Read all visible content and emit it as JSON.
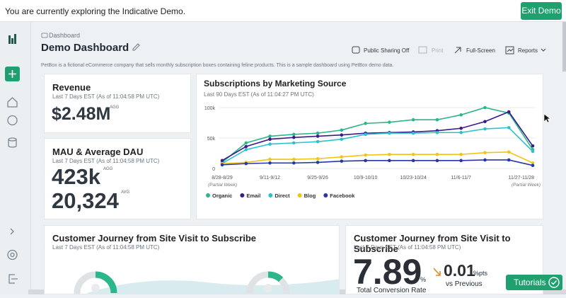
{
  "banner": {
    "message": "You are currently exploring the Indicative Demo.",
    "button": "Exit Demo"
  },
  "header": {
    "breadcrumb": "Dashboard",
    "title": "Demo Dashboard",
    "actions": [
      "Public Sharing Off",
      "Print",
      "Full-Screen",
      "Reports"
    ],
    "description": "PetBox is a fictional eCommerce company that sells monthly subscription boxes containing feline products. This is a sample dashboard using PetBox demo data."
  },
  "cards": [
    {
      "title": "Revenue",
      "subtitle": "Last 7 Days EST (As of 11:04:58 PM UTC)",
      "metrics": [
        {
          "value": "$2.48M",
          "tag": "AGG"
        }
      ]
    },
    {
      "title": "MAU & Average DAU",
      "subtitle": "Last 7 Days EST (As of 11:04:58 PM UTC)",
      "metrics": [
        {
          "value": "423k",
          "tag": "AGG"
        },
        {
          "value": "20,324",
          "tag": "AVG"
        }
      ]
    },
    {
      "title": "Customer Journey from Site Visit to Subscribe",
      "subtitle": "Last 7 Days EST (As of 11:04:58 PM UTC)"
    },
    {
      "title": "Customer Journey from Site Visit to Subscribe",
      "subtitle": "Last 7 Days EST (As of 11:04:58 PM UTC)",
      "value": "7.89",
      "unit": "%",
      "change": "0.01",
      "change_unit": "%pts",
      "comparison": "vs Previous",
      "caption": "Total Conversion Rate"
    }
  ],
  "tutorials": "Tutorials",
  "chart_data": {
    "type": "line",
    "title": "Subscriptions by Marketing Source",
    "subtitle": "Last 90 Days EST (As of 11:04:27 PM UTC)",
    "categories": [
      "8/28-8/29",
      null,
      "9/11-9/12",
      null,
      "9/25-9/26",
      null,
      "10/9-10/10",
      null,
      "10/23-10/24",
      null,
      "11/6-11/7",
      null,
      null,
      "11/27-11/28"
    ],
    "category_notes": [
      "(Partial Week)",
      null,
      null,
      null,
      null,
      null,
      null,
      null,
      null,
      null,
      null,
      null,
      null,
      "(Partial Week)"
    ],
    "ylim": [
      0,
      100000
    ],
    "yticks": [
      0,
      {
        "value": 50000,
        "label": "50k"
      },
      {
        "value": 100000,
        "label": "100k"
      }
    ],
    "grid": true,
    "series": [
      {
        "name": "Organic",
        "color": "#2db58b",
        "values": [
          10000,
          42000,
          53000,
          56000,
          58000,
          63000,
          74000,
          76000,
          80000,
          80000,
          88000,
          100000,
          91000,
          31000
        ]
      },
      {
        "name": "Email",
        "color": "#3b1a8a",
        "values": [
          13000,
          36000,
          48000,
          51000,
          53000,
          55000,
          58000,
          59000,
          60000,
          62000,
          66000,
          77000,
          93000,
          37000
        ]
      },
      {
        "name": "Direct",
        "color": "#2cc2cc",
        "values": [
          8000,
          31000,
          40000,
          42000,
          44000,
          48000,
          56000,
          58000,
          58000,
          59000,
          59000,
          65000,
          67000,
          28000
        ]
      },
      {
        "name": "Blog",
        "color": "#f2c418",
        "values": [
          8000,
          10000,
          15000,
          15000,
          16000,
          19000,
          22000,
          23000,
          23000,
          23000,
          23000,
          26000,
          27000,
          9000
        ]
      },
      {
        "name": "Facebook",
        "color": "#2837a8",
        "values": [
          6000,
          8000,
          9000,
          9000,
          10000,
          12000,
          13000,
          13000,
          13000,
          13000,
          13000,
          14000,
          14000,
          5000
        ]
      }
    ]
  }
}
